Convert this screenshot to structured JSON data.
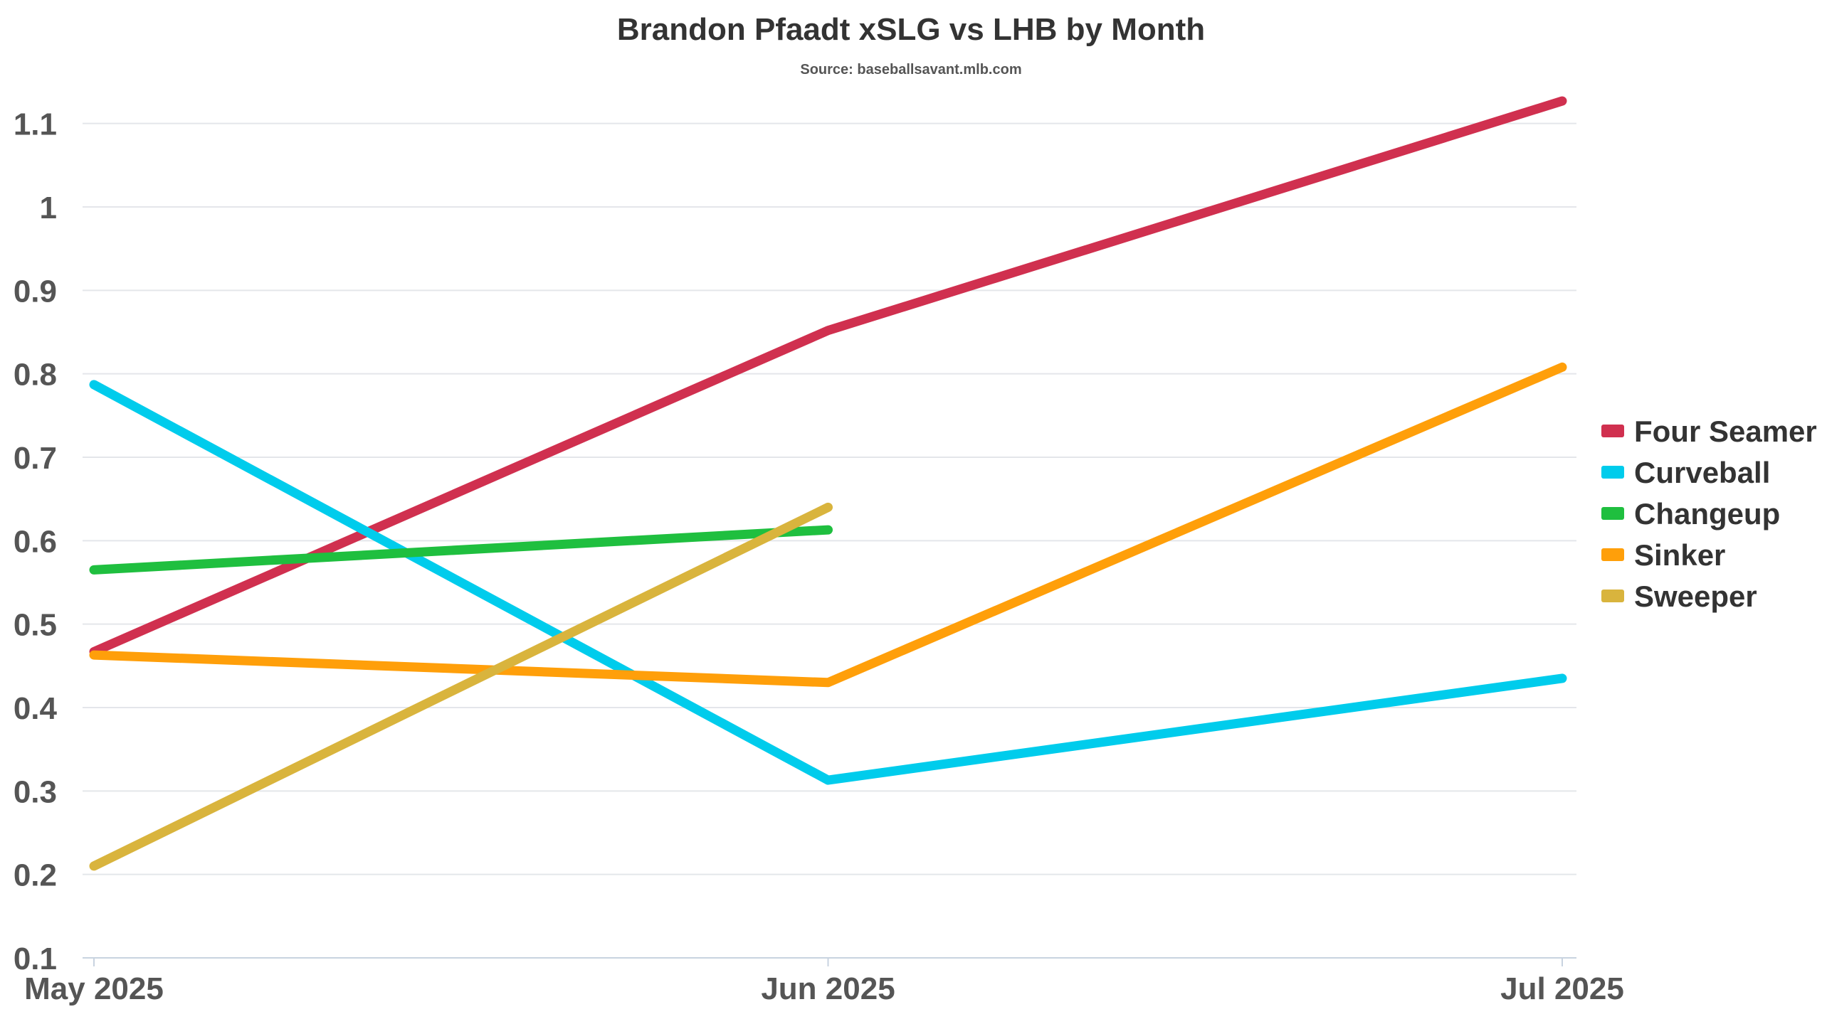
{
  "chart_data": {
    "type": "line",
    "title": "Brandon Pfaadt xSLG vs LHB by Month",
    "subtitle": "Source: baseballsavant.mlb.com",
    "xlabel": "",
    "ylabel": "",
    "x": [
      "May 2025",
      "Jun 2025",
      "Jul 2025"
    ],
    "ylim": [
      0.1,
      1.15
    ],
    "y_ticks": [
      0.1,
      0.2,
      0.3,
      0.4,
      0.5,
      0.6,
      0.7,
      0.8,
      0.9,
      1,
      1.1
    ],
    "y_tick_labels": [
      "0.1",
      "0.2",
      "0.3",
      "0.4",
      "0.5",
      "0.6",
      "0.7",
      "0.8",
      "0.9",
      "1",
      "1.1"
    ],
    "grid": true,
    "legend_position": "right",
    "series": [
      {
        "name": "Four Seamer",
        "color": "#d0304f",
        "values": [
          0.467,
          0.852,
          1.127
        ]
      },
      {
        "name": "Curveball",
        "color": "#00ccec",
        "values": [
          0.787,
          0.313,
          0.435
        ]
      },
      {
        "name": "Changeup",
        "color": "#1fbf3f",
        "values": [
          0.565,
          0.613,
          null
        ]
      },
      {
        "name": "Sinker",
        "color": "#ff9f0a",
        "values": [
          0.463,
          0.43,
          0.808
        ]
      },
      {
        "name": "Sweeper",
        "color": "#d9b43d",
        "values": [
          0.21,
          0.64,
          null
        ]
      }
    ]
  }
}
